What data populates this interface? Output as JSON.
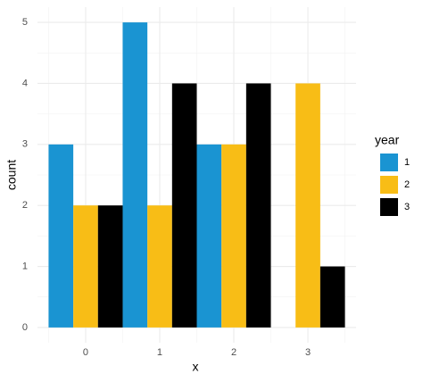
{
  "chart_data": {
    "type": "bar",
    "x_label": "x",
    "y_label": "count",
    "categories": [
      "0",
      "1",
      "2",
      "3"
    ],
    "series": [
      {
        "name": "1",
        "color": "#1a94d2",
        "values": [
          3,
          5,
          3,
          0
        ]
      },
      {
        "name": "2",
        "color": "#f8bd16",
        "values": [
          2,
          2,
          3,
          4
        ]
      },
      {
        "name": "3",
        "color": "#000000",
        "values": [
          2,
          4,
          4,
          1
        ]
      }
    ],
    "legend_title": "year",
    "ylim": [
      -0.25,
      5.25
    ],
    "yticks": [
      0,
      1,
      2,
      3,
      4,
      5
    ],
    "grid": true
  }
}
